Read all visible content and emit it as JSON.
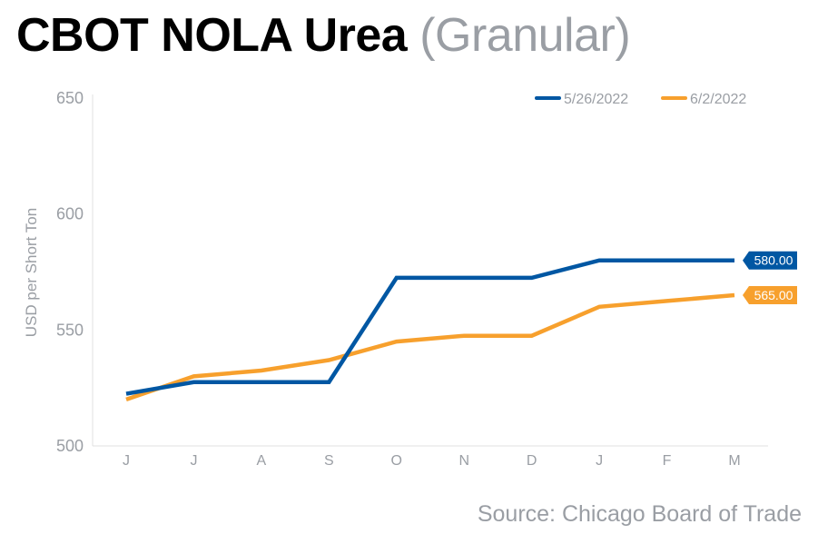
{
  "header": {
    "title_bold": "CBOT NOLA Urea",
    "title_light": "(Granular)"
  },
  "footer": {
    "source": "Source: Chicago Board of Trade"
  },
  "chart_data": {
    "type": "line",
    "title": "CBOT NOLA Urea (Granular)",
    "xlabel": "",
    "ylabel": "USD per Short Ton",
    "ylim": [
      500,
      650
    ],
    "yticks": [
      500,
      550,
      600,
      650
    ],
    "categories": [
      "J",
      "J",
      "A",
      "S",
      "O",
      "N",
      "D",
      "J",
      "F",
      "M"
    ],
    "grid": false,
    "legend_position": "top-right",
    "series": [
      {
        "name": "5/26/2022",
        "color": "#0057a3",
        "values": [
          522.5,
          527.5,
          527.5,
          527.5,
          572.5,
          572.5,
          572.5,
          580,
          580,
          580
        ],
        "end_label": "580.00"
      },
      {
        "name": "6/2/2022",
        "color": "#f7a02d",
        "values": [
          520,
          530,
          532.5,
          537,
          545,
          547.5,
          547.5,
          560,
          562.5,
          565
        ],
        "end_label": "565.00"
      }
    ]
  }
}
